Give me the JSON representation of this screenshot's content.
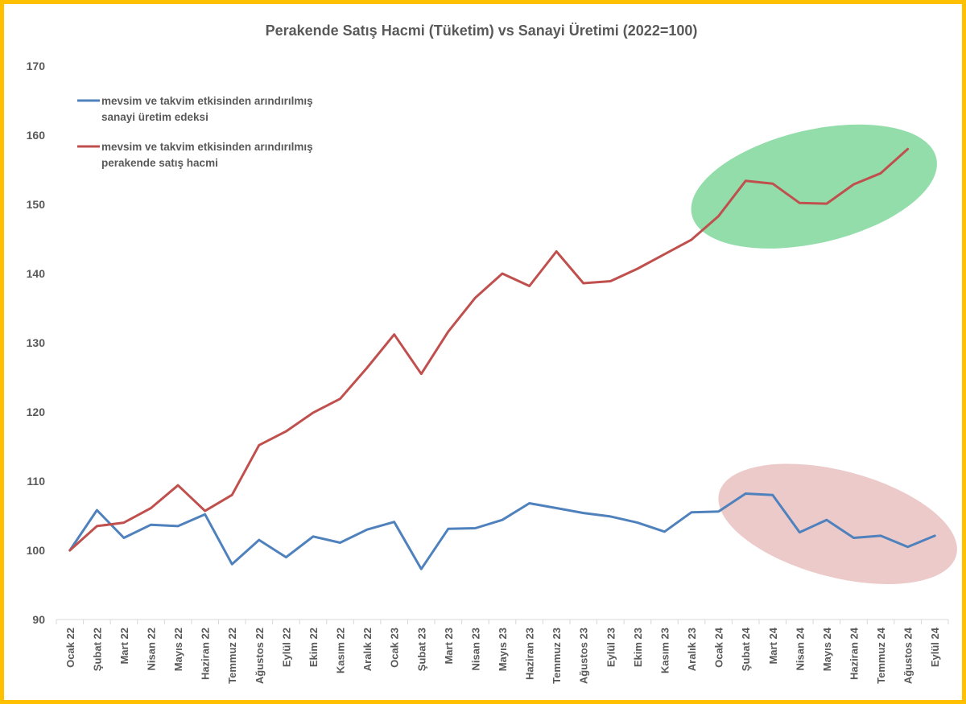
{
  "chart_data": {
    "type": "line",
    "title": "Perakende Satış Hacmi (Tüketim) vs Sanayi Üretimi (2022=100)",
    "xlabel": "",
    "ylabel": "",
    "ylim": [
      90,
      170
    ],
    "yticks": [
      90,
      100,
      110,
      120,
      130,
      140,
      150,
      160,
      170
    ],
    "grid": false,
    "legend_position": "top-left",
    "categories": [
      "Ocak 22",
      "Şubat 22",
      "Mart 22",
      "Nisan 22",
      "Mayıs 22",
      "Haziran 22",
      "Temmuz 22",
      "Ağustos 22",
      "Eylül 22",
      "Ekim 22",
      "Kasım 22",
      "Aralık 22",
      "Ocak 23",
      "Şubat 23",
      "Mart 23",
      "Nisan 23",
      "Mayıs 23",
      "Haziran 23",
      "Temmuz 23",
      "Ağustos 23",
      "Eylül 23",
      "Ekim 23",
      "Kasım 23",
      "Aralık 23",
      "Ocak 24",
      "Şubat 24",
      "Mart 24",
      "Nisan 24",
      "Mayıs 24",
      "Haziran 24",
      "Temmuz 24",
      "Ağustos 24",
      "Eylül 24"
    ],
    "series": [
      {
        "name": "mevsim ve takvim etkisinden arındırılmış sanayi üretim edeksi",
        "legend_lines": [
          "mevsim ve takvim etkisinden arındırılmış",
          "sanayi üretim edeksi"
        ],
        "color": "#4f81bd",
        "values": [
          100.0,
          105.8,
          101.8,
          103.7,
          103.5,
          105.2,
          98.0,
          101.5,
          99.0,
          102.0,
          101.1,
          103.0,
          104.1,
          97.3,
          103.1,
          103.2,
          104.4,
          106.8,
          106.1,
          105.4,
          104.9,
          104.0,
          102.7,
          105.5,
          105.6,
          108.2,
          108.0,
          102.6,
          104.4,
          101.8,
          102.1,
          100.5,
          102.1
        ]
      },
      {
        "name": "mevsim ve takvim etkisinden arındırılmış perakende satış hacmi",
        "legend_lines": [
          "mevsim ve takvim etkisinden arındırılmış",
          "perakende satış hacmi"
        ],
        "color": "#c0504d",
        "values": [
          100.0,
          103.5,
          104.0,
          106.1,
          109.4,
          105.7,
          108.0,
          115.2,
          117.2,
          119.9,
          121.9,
          126.4,
          131.2,
          125.5,
          131.6,
          136.5,
          140.0,
          138.2,
          143.2,
          138.6,
          138.9,
          140.7,
          142.8,
          144.9,
          148.3,
          153.4,
          153.0,
          150.2,
          150.1,
          152.9,
          154.5,
          158.0,
          null
        ]
      }
    ],
    "highlights": [
      {
        "color": "#50c878",
        "series": 1,
        "from": "Ocak 24",
        "to": "Ağustos 24"
      },
      {
        "color": "#c0504d",
        "series": 0,
        "from": "Şubat 24",
        "to": "Eylül 24"
      }
    ]
  }
}
